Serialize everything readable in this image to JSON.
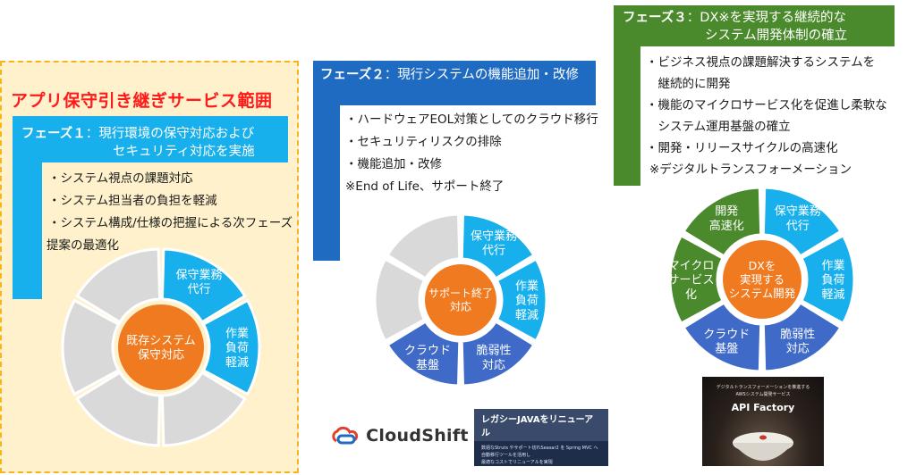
{
  "scope_title": "アプリ保守引き継ぎサービス範囲",
  "phase1": {
    "heading_bold": "フェーズ１",
    "heading_rest1": "：現行環境の保守対応および",
    "heading_rest2": "セキュリティ対応を実施",
    "bullets": [
      "・システム視点の課題対応",
      "・システム担当者の負担を軽減",
      "・システム構成/仕様の把握による次フェーズ",
      "提案の最適化"
    ],
    "wheel": {
      "center": [
        "既存システム",
        "保守対応"
      ],
      "segments": [
        [
          "保守業務",
          "代行"
        ],
        [
          "作業",
          "負荷",
          "軽減"
        ]
      ]
    }
  },
  "phase2": {
    "heading_bold": "フェーズ２",
    "heading_rest": "：現行システムの機能追加・改修",
    "bullets": [
      "・ハードウェアEOL対策としてのクラウド移行",
      "・セキュリティリスクの排除",
      "・機能追加・改修",
      "※End of Life、サポート終了"
    ],
    "wheel": {
      "center": [
        "サポート終了",
        "対応"
      ],
      "segments": [
        [
          "保守業務",
          "代行"
        ],
        [
          "作業",
          "負荷",
          "軽減"
        ],
        [
          "脆弱性",
          "対応"
        ],
        [
          "クラウド",
          "基盤"
        ]
      ]
    }
  },
  "phase3": {
    "heading_bold": "フェーズ３",
    "heading_rest1": "：DX※を実現する継続的な",
    "heading_rest2": "システム開発体制の確立",
    "bullets": [
      "・ビジネス視点の課題解決するシステムを",
      "　継続的に開発",
      "・機能のマイクロサービス化を促進し柔軟な",
      "　システム運用基盤の確立",
      "・開発・リリースサイクルの高速化",
      "※デジタルトランスフォーメーション"
    ],
    "wheel": {
      "center": [
        "DXを",
        "実現する",
        "システム開発"
      ],
      "segments": [
        [
          "保守業務",
          "代行"
        ],
        [
          "作業",
          "負荷",
          "軽減"
        ],
        [
          "脆弱性",
          "対応"
        ],
        [
          "クラウド",
          "基盤"
        ],
        [
          "マイクロ",
          "サービス",
          "化"
        ],
        [
          "開発",
          "高速化"
        ]
      ]
    }
  },
  "logos": {
    "cloudshift": "CloudShift",
    "legacy_banner_title": "レガシーJAVAをリニューアル",
    "legacy_banner_text": [
      "数週なStruts やサポート切れSeasar2 を Spring MVC へ",
      "自動移行ツールを活用し",
      "最適なコストでリニューアルを実現"
    ],
    "api_banner_sub": [
      "デジタルトランスフォーメーションを推進する",
      "AWSシステム開発サービス"
    ],
    "api_banner_title": "API Factory"
  },
  "colors": {
    "cyan": "#18b0ec",
    "blue": "#1f6bc2",
    "green": "#4a8a2c",
    "orange": "#f07a20",
    "gray": "#d9d9d9",
    "navy": "#3f6ac8"
  }
}
